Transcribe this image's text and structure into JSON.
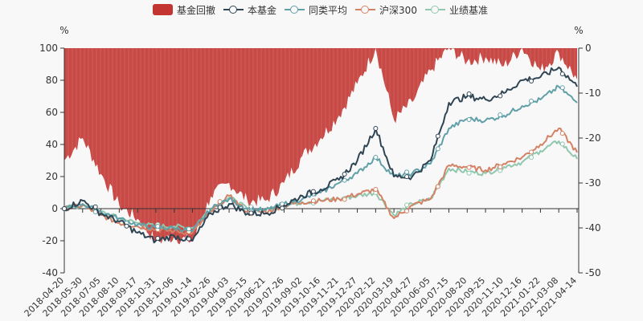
{
  "chart_data": {
    "type": "line",
    "title": "",
    "legend": [
      {
        "name": "基金回撤",
        "color": "#c23531",
        "kind": "area",
        "axis": "right"
      },
      {
        "name": "本基金",
        "color": "#2f4554",
        "kind": "line",
        "axis": "left"
      },
      {
        "name": "同类平均",
        "color": "#61a0a8",
        "kind": "line",
        "axis": "left"
      },
      {
        "name": "沪深300",
        "color": "#d48265",
        "kind": "line",
        "axis": "left"
      },
      {
        "name": "业绩基准",
        "color": "#91c7ae",
        "kind": "line",
        "axis": "left"
      }
    ],
    "legend_position": "top",
    "yaxis_left": {
      "label": "%",
      "min": -40,
      "max": 100,
      "ticks": [
        100,
        80,
        60,
        40,
        20,
        0,
        -20,
        -40
      ]
    },
    "yaxis_right": {
      "label": "%",
      "min": -50,
      "max": 0,
      "ticks": [
        0,
        -10,
        -20,
        -30,
        -40,
        -50
      ]
    },
    "categories": [
      "2018-04-20",
      "2018-05-30",
      "2018-07-05",
      "2018-08-10",
      "2018-09-17",
      "2018-10-31",
      "2018-12-06",
      "2019-01-14",
      "2019-02-26",
      "2019-04-03",
      "2019-05-15",
      "2019-06-21",
      "2019-07-26",
      "2019-09-02",
      "2019-10-16",
      "2019-11-21",
      "2019-12-27",
      "2020-02-12",
      "2020-03-19",
      "2020-04-27",
      "2020-06-05",
      "2020-07-15",
      "2020-08-20",
      "2020-09-25",
      "2020-11-10",
      "2020-12-16",
      "2021-01-22",
      "2021-03-08",
      "2021-04-14"
    ],
    "series": [
      {
        "name": "基金回撤",
        "axis": "right",
        "values": [
          -25,
          -20,
          -28,
          -35,
          -38,
          -43,
          -42,
          -43,
          -33,
          -30,
          -34,
          -34,
          -30,
          -24,
          -20,
          -15,
          -8,
          0,
          -16,
          -12,
          -5,
          0,
          -3,
          -2,
          -4,
          0,
          -5,
          -1,
          -7
        ]
      },
      {
        "name": "本基金",
        "axis": "left",
        "values": [
          0,
          5,
          -3,
          -8,
          -15,
          -20,
          -17,
          -20,
          -3,
          3,
          -3,
          -3,
          2,
          8,
          12,
          18,
          30,
          50,
          20,
          20,
          30,
          66,
          70,
          68,
          72,
          80,
          82,
          88,
          76
        ]
      },
      {
        "name": "同类平均",
        "axis": "left",
        "values": [
          0,
          3,
          -2,
          -6,
          -10,
          -12,
          -12,
          -14,
          0,
          6,
          0,
          -1,
          3,
          6,
          10,
          16,
          22,
          32,
          20,
          22,
          28,
          50,
          56,
          55,
          58,
          64,
          68,
          76,
          66
        ]
      },
      {
        "name": "沪深300",
        "axis": "left",
        "values": [
          0,
          2,
          -4,
          -9,
          -11,
          -13,
          -14,
          -15,
          -2,
          8,
          -2,
          -2,
          2,
          4,
          5,
          6,
          9,
          12,
          -6,
          2,
          6,
          27,
          26,
          24,
          28,
          32,
          40,
          50,
          35
        ]
      },
      {
        "name": "业绩基准",
        "axis": "left",
        "values": [
          0,
          2,
          -2,
          -6,
          -9,
          -11,
          -11,
          -12,
          0,
          7,
          0,
          -1,
          2,
          4,
          5,
          6,
          8,
          10,
          -4,
          3,
          6,
          25,
          23,
          22,
          26,
          29,
          36,
          42,
          31
        ]
      }
    ]
  }
}
